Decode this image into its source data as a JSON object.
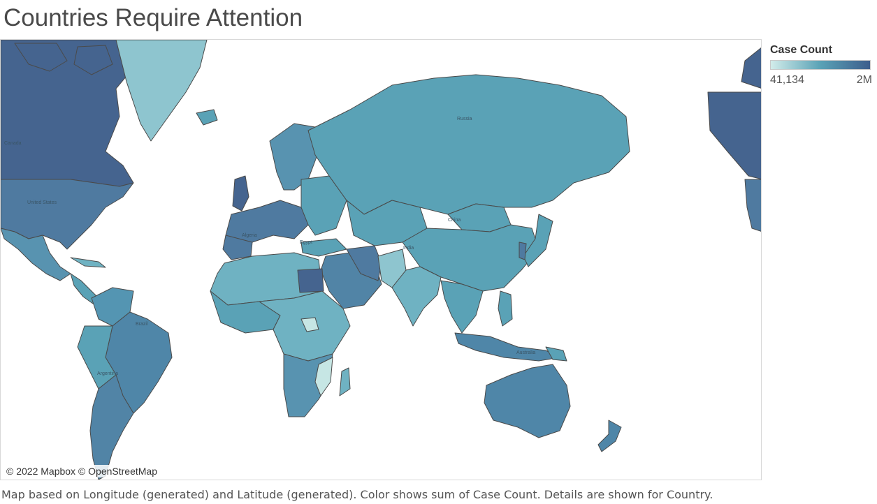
{
  "header": {
    "title": "Countries Require Attention"
  },
  "legend": {
    "title": "Case Count",
    "min_label": "41,134",
    "max_label": "2M",
    "min_color": "#d2ecea",
    "mid_color": "#5aa2b6",
    "max_color": "#3d5e8c"
  },
  "map": {
    "attribution": "© 2022 Mapbox © OpenStreetMap",
    "labels": {
      "canada": "Canada",
      "united_states": "United States",
      "brazil": "Brazil",
      "russia": "Russia",
      "china": "China",
      "india": "India",
      "algeria": "Algeria",
      "egypt": "Egypt",
      "australia": "Australia",
      "argentina": "Argentina"
    }
  },
  "caption": "Map based on Longitude (generated) and Latitude (generated).  Color shows sum of Case Count.  Details are shown for Country."
}
